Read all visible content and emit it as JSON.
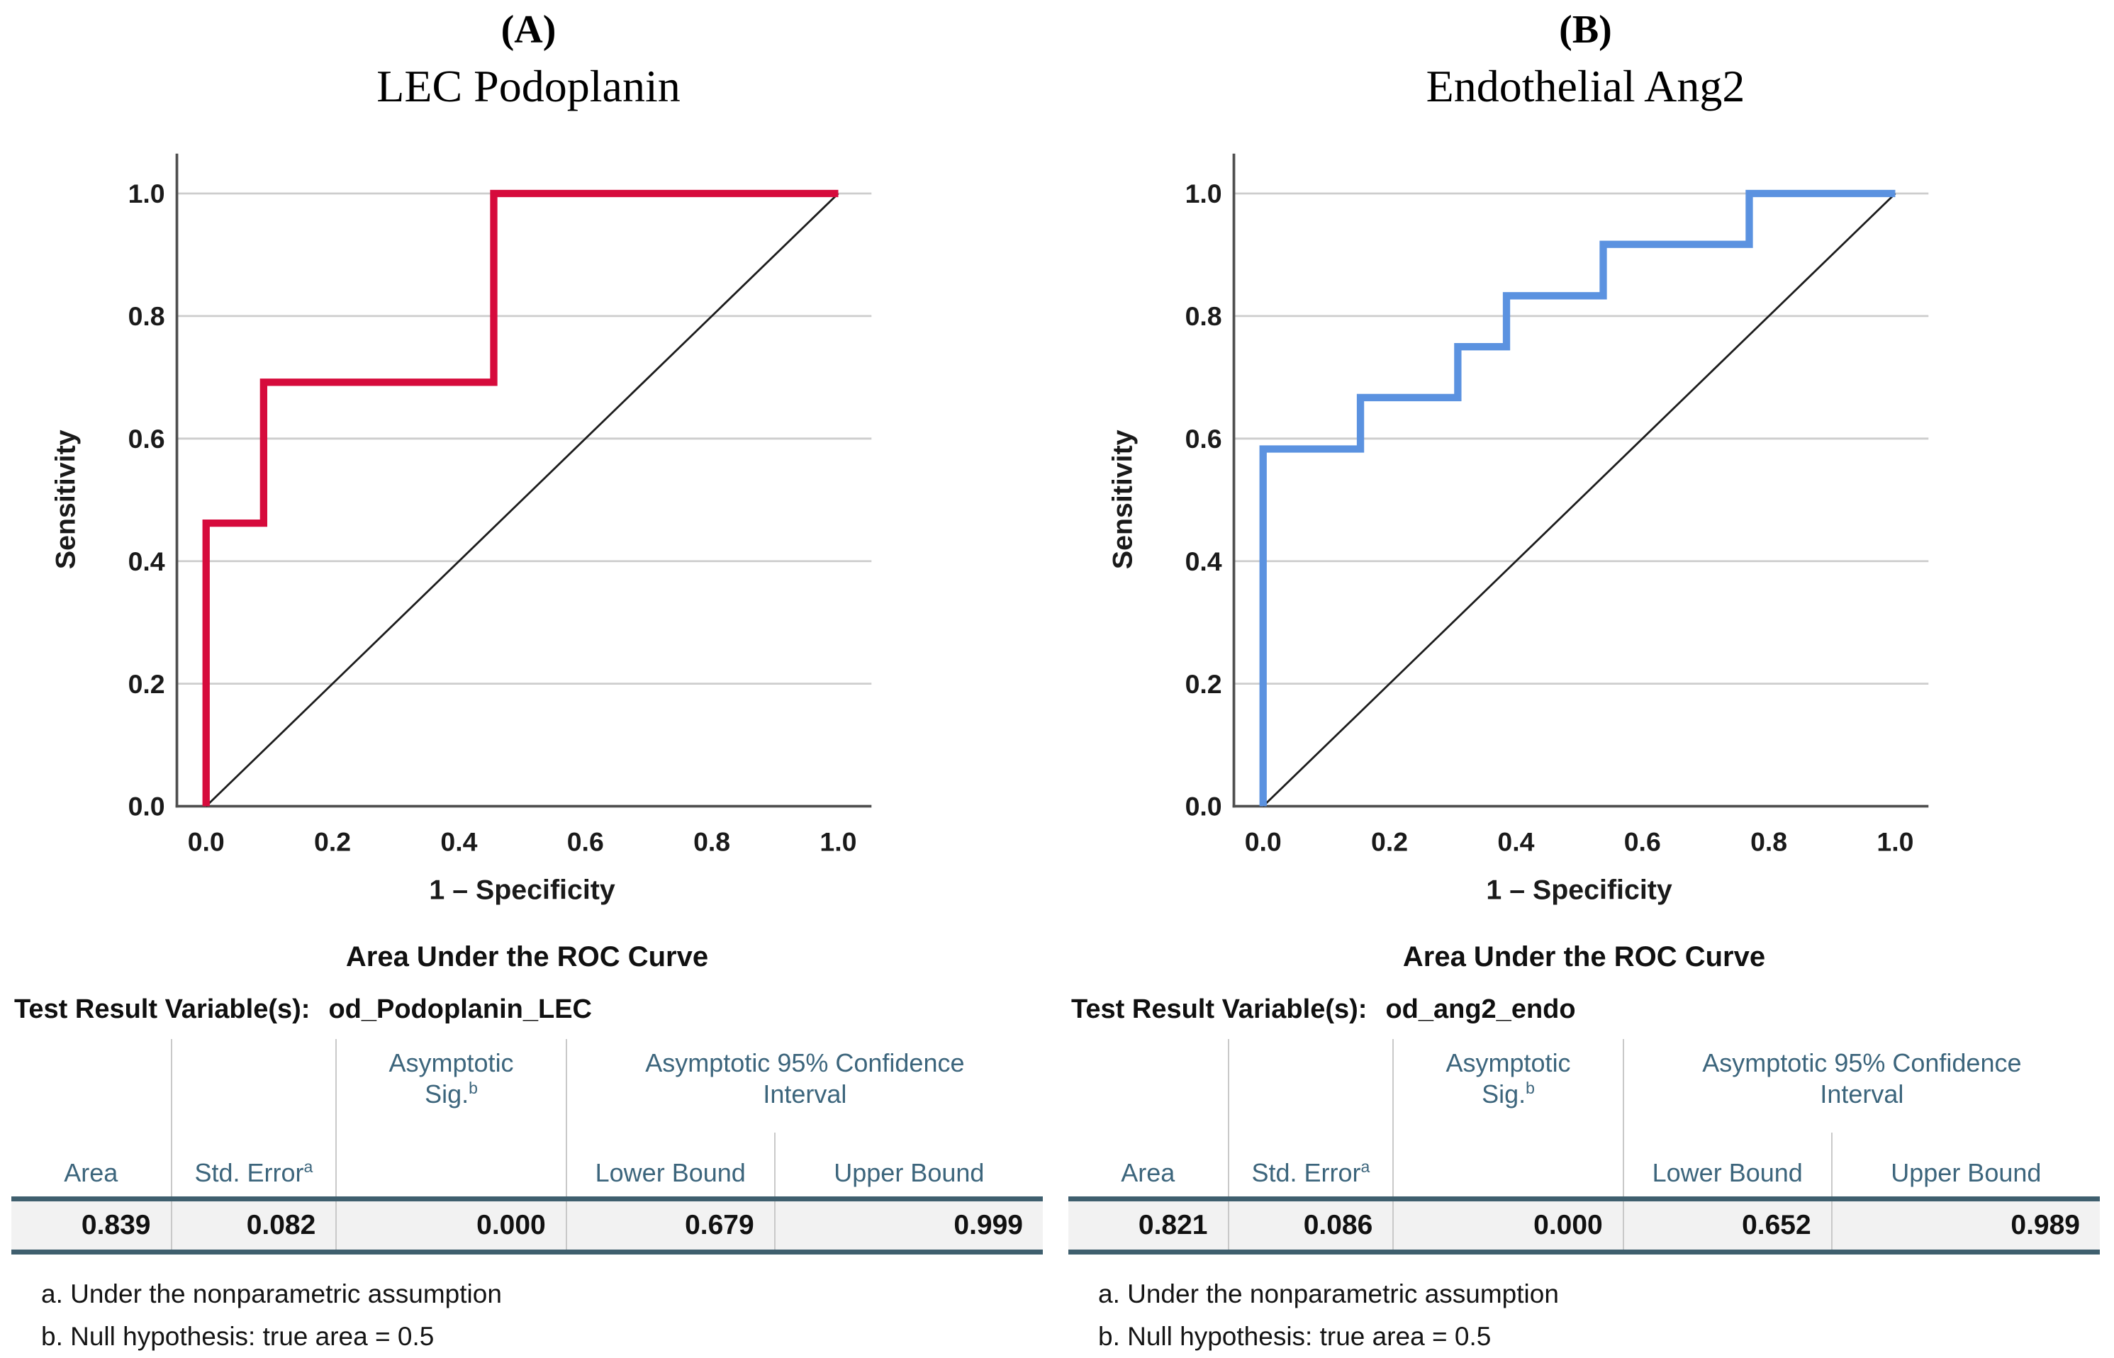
{
  "chart_data": [
    {
      "type": "line",
      "panel_label": "(A)",
      "title": "LEC Podoplanin",
      "xlabel": "1 – Specificity",
      "ylabel": "Sensitivity",
      "xlim": [
        0,
        1
      ],
      "ylim": [
        0,
        1
      ],
      "x_ticks": [
        "0.0",
        "0.2",
        "0.4",
        "0.6",
        "0.8",
        "1.0"
      ],
      "y_ticks": [
        "0.0",
        "0.2",
        "0.4",
        "0.6",
        "0.8",
        "1.0"
      ],
      "grid": "horizontal",
      "legend": "none",
      "series": [
        {
          "name": "ROC curve",
          "color": "#d60b3c",
          "points": [
            [
              0,
              0
            ],
            [
              0,
              0.462
            ],
            [
              0.091,
              0.462
            ],
            [
              0.091,
              0.692
            ],
            [
              0.455,
              0.692
            ],
            [
              0.455,
              1.0
            ],
            [
              1.0,
              1.0
            ]
          ]
        },
        {
          "name": "Reference diagonal",
          "color": "#1c1c1c",
          "points": [
            [
              0,
              0
            ],
            [
              1.0,
              1.0
            ]
          ]
        }
      ],
      "table": {
        "title": "Area Under the ROC Curve",
        "variable_label": "Test Result Variable(s):",
        "variable_name": "od_Podoplanin_LEC",
        "headers": {
          "area": "Area",
          "std_error": "Std. Error",
          "std_error_sup": "a",
          "sig_line1": "Asymptotic",
          "sig_line2": "Sig.",
          "sig_sup": "b",
          "ci_line1": "Asymptotic 95% Confidence",
          "ci_line2": "Interval",
          "lower": "Lower Bound",
          "upper": "Upper Bound"
        },
        "row": {
          "area": "0.839",
          "std_error": "0.082",
          "sig": "0.000",
          "lower": "0.679",
          "upper": "0.999"
        },
        "footnotes": [
          "a. Under the nonparametric assumption",
          "b. Null hypothesis: true area = 0.5"
        ]
      }
    },
    {
      "type": "line",
      "panel_label": "(B)",
      "title": "Endothelial Ang2",
      "xlabel": "1 – Specificity",
      "ylabel": "Sensitivity",
      "xlim": [
        0,
        1
      ],
      "ylim": [
        0,
        1
      ],
      "x_ticks": [
        "0.0",
        "0.2",
        "0.4",
        "0.6",
        "0.8",
        "1.0"
      ],
      "y_ticks": [
        "0.0",
        "0.2",
        "0.4",
        "0.6",
        "0.8",
        "1.0"
      ],
      "grid": "horizontal",
      "legend": "none",
      "series": [
        {
          "name": "ROC curve",
          "color": "#5b92e0",
          "points": [
            [
              0,
              0
            ],
            [
              0,
              0.583
            ],
            [
              0.154,
              0.583
            ],
            [
              0.154,
              0.667
            ],
            [
              0.308,
              0.667
            ],
            [
              0.308,
              0.75
            ],
            [
              0.385,
              0.75
            ],
            [
              0.385,
              0.833
            ],
            [
              0.538,
              0.833
            ],
            [
              0.538,
              0.917
            ],
            [
              0.769,
              0.917
            ],
            [
              0.769,
              1.0
            ],
            [
              1.0,
              1.0
            ]
          ]
        },
        {
          "name": "Reference diagonal",
          "color": "#1c1c1c",
          "points": [
            [
              0,
              0
            ],
            [
              1.0,
              1.0
            ]
          ]
        }
      ],
      "table": {
        "title": "Area Under the ROC Curve",
        "variable_label": "Test Result Variable(s):",
        "variable_name": "od_ang2_endo",
        "headers": {
          "area": "Area",
          "std_error": "Std. Error",
          "std_error_sup": "a",
          "sig_line1": "Asymptotic",
          "sig_line2": "Sig.",
          "sig_sup": "b",
          "ci_line1": "Asymptotic 95% Confidence",
          "ci_line2": "Interval",
          "lower": "Lower Bound",
          "upper": "Upper Bound"
        },
        "row": {
          "area": "0.821",
          "std_error": "0.086",
          "sig": "0.000",
          "lower": "0.652",
          "upper": "0.989"
        },
        "footnotes": [
          "a. Under the nonparametric assumption",
          "b. Null hypothesis: true area = 0.5"
        ]
      }
    }
  ],
  "style": {
    "curve_color_a": "#d60b3c",
    "curve_color_b": "#5b92e0",
    "grid_color": "#cdcdcd",
    "axis_color": "#4f4f4f",
    "table_header_color": "#3c657c",
    "table_rule_color": "#3f5f6e",
    "row_background": "#f2f2f2"
  }
}
